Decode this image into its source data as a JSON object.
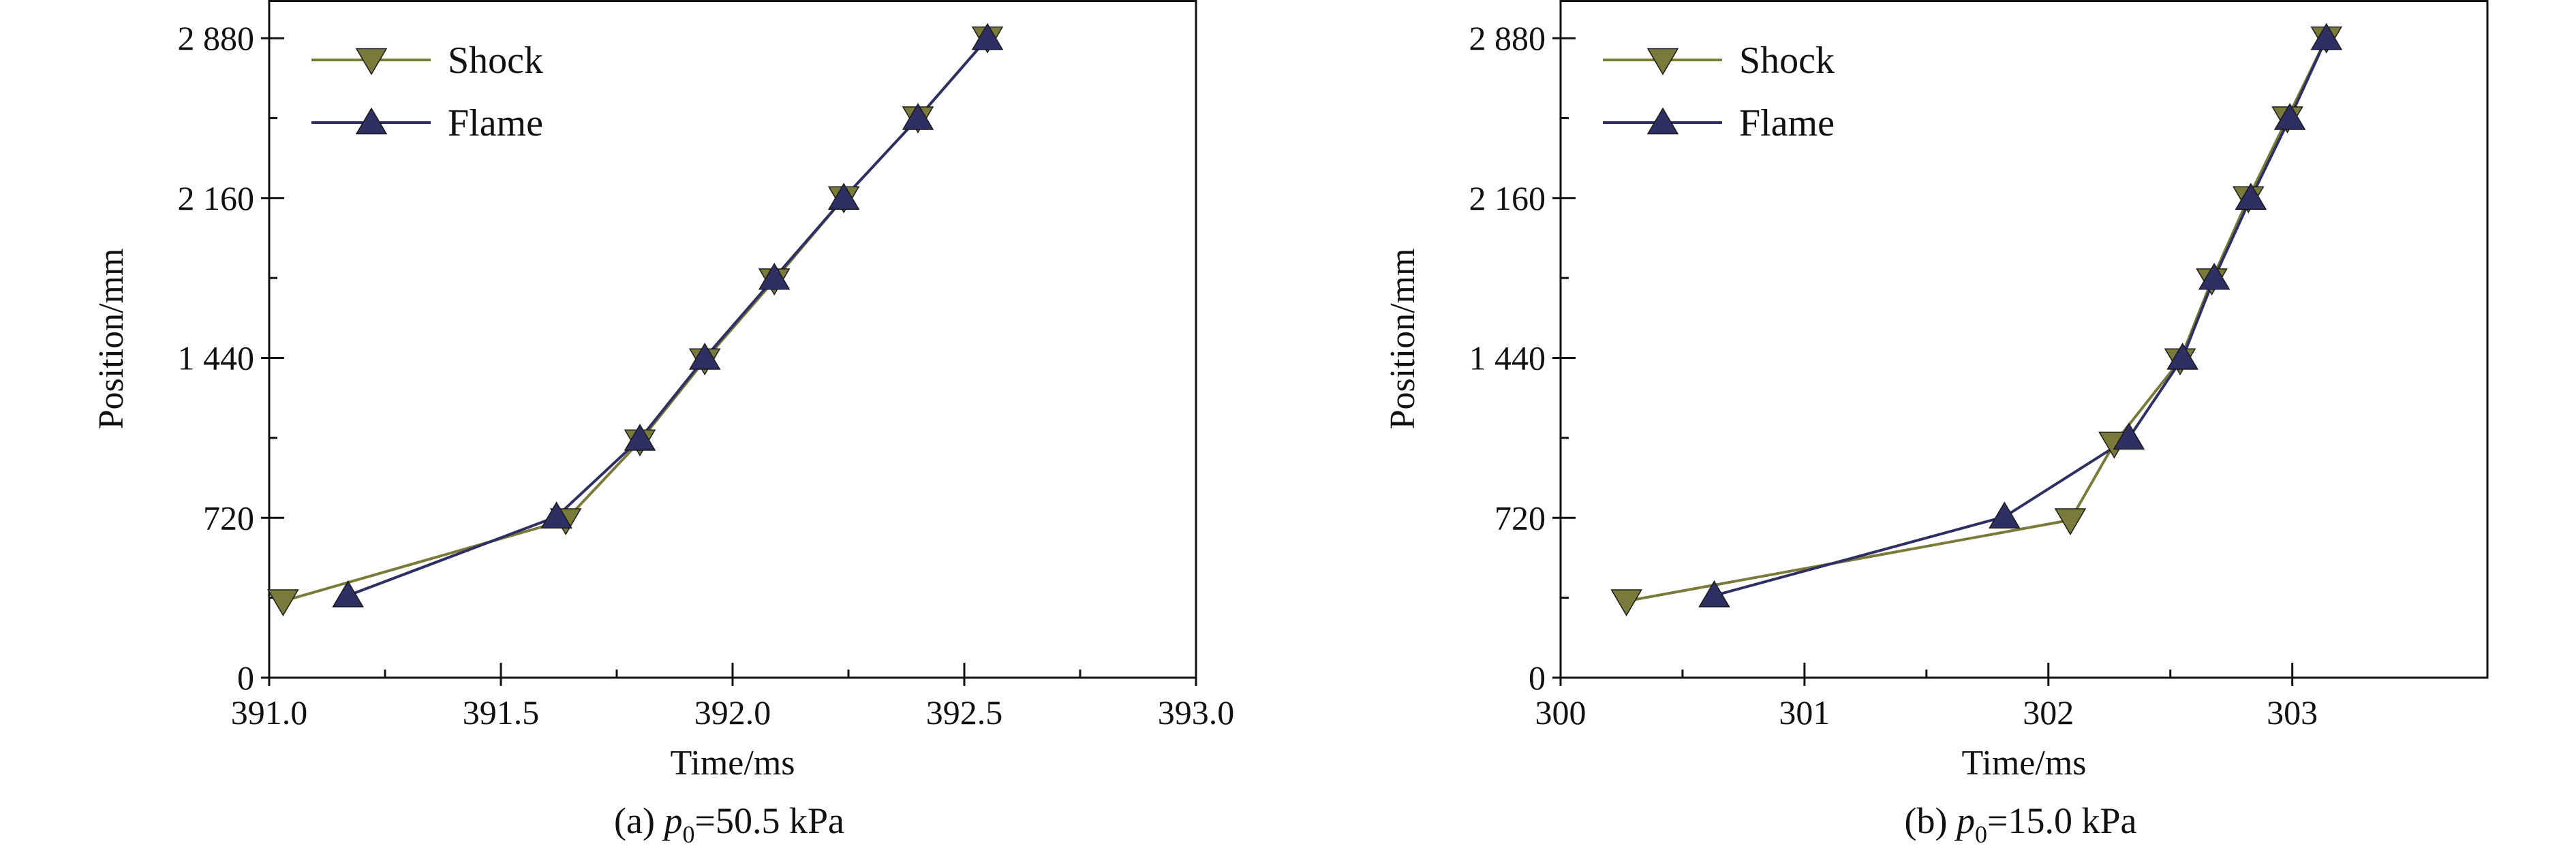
{
  "chart_data": [
    {
      "type": "line",
      "caption": {
        "prefix": "(a) ",
        "symbol": "p",
        "subscript": "0",
        "suffix": "=50.5 kPa"
      },
      "xlabel": "Time/ms",
      "ylabel": "Position/mm",
      "xlim": [
        391.0,
        393.0
      ],
      "ylim": [
        0,
        2960
      ],
      "xticks": [
        391.0,
        391.5,
        392.0,
        392.5,
        393.0
      ],
      "xtick_labels": [
        "391.0",
        "391.5",
        "392.0",
        "392.5",
        "393.0"
      ],
      "yticks": [
        0,
        720,
        1440,
        2160,
        2880
      ],
      "ytick_labels": [
        "0",
        "720",
        "1 440",
        "2 160",
        "2 880"
      ],
      "grid": false,
      "legend_position": "top-left",
      "series": [
        {
          "name": "Shock",
          "color": "#7a7a3a",
          "marker": "triangle-down",
          "x": [
            391.03,
            391.64,
            391.8,
            391.94,
            392.09,
            392.24,
            392.4,
            392.55
          ],
          "y": [
            345,
            710,
            1065,
            1430,
            1790,
            2160,
            2520,
            2880
          ]
        },
        {
          "name": "Flame",
          "color": "#2e2f63",
          "marker": "triangle-up",
          "x": [
            391.17,
            391.62,
            391.8,
            391.94,
            392.09,
            392.24,
            392.4,
            392.55
          ],
          "y": [
            370,
            725,
            1075,
            1440,
            1800,
            2160,
            2520,
            2880
          ]
        }
      ]
    },
    {
      "type": "line",
      "caption": {
        "prefix": "(b) ",
        "symbol": "p",
        "subscript": "0",
        "suffix": "=15.0 kPa"
      },
      "xlabel": "Time/ms",
      "ylabel": "Position/mm",
      "xlim": [
        300.0,
        303.8
      ],
      "ylim": [
        0,
        2960
      ],
      "xticks": [
        300,
        301,
        302,
        303
      ],
      "xtick_labels": [
        "300",
        "301",
        "302",
        "303"
      ],
      "yticks": [
        0,
        720,
        1440,
        2160,
        2880
      ],
      "ytick_labels": [
        "0",
        "720",
        "1 440",
        "2 160",
        "2 880"
      ],
      "grid": false,
      "legend_position": "top-left",
      "series": [
        {
          "name": "Shock",
          "color": "#7a7a3a",
          "marker": "triangle-down",
          "x": [
            300.27,
            302.09,
            302.27,
            302.54,
            302.67,
            302.82,
            302.98,
            303.14
          ],
          "y": [
            345,
            710,
            1055,
            1430,
            1790,
            2160,
            2520,
            2880
          ]
        },
        {
          "name": "Flame",
          "color": "#2e2f63",
          "marker": "triangle-up",
          "x": [
            300.63,
            301.82,
            302.33,
            302.55,
            302.68,
            302.83,
            302.99,
            303.14
          ],
          "y": [
            370,
            725,
            1080,
            1440,
            1800,
            2160,
            2520,
            2880
          ]
        }
      ]
    }
  ]
}
